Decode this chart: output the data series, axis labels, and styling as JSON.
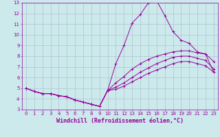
{
  "background_color": "#cce9ec",
  "line_color": "#990099",
  "grid_color": "#aabbcc",
  "xlabel": "Windchill (Refroidissement éolien,°C)",
  "xlabel_color": "#990099",
  "xlim": [
    -0.5,
    23.5
  ],
  "ylim": [
    3,
    13
  ],
  "xticks": [
    0,
    1,
    2,
    3,
    4,
    5,
    6,
    7,
    8,
    9,
    10,
    11,
    12,
    13,
    14,
    15,
    16,
    17,
    18,
    19,
    20,
    21,
    22,
    23
  ],
  "yticks": [
    3,
    4,
    5,
    6,
    7,
    8,
    9,
    10,
    11,
    12,
    13
  ],
  "lines": [
    {
      "x": [
        0,
        1,
        2,
        3,
        4,
        5,
        6,
        7,
        8,
        9,
        10,
        11,
        12,
        13,
        14,
        15,
        16,
        17,
        18,
        19,
        20,
        21,
        22,
        23
      ],
      "y": [
        5.0,
        4.7,
        4.5,
        4.5,
        4.3,
        4.2,
        3.9,
        3.7,
        3.5,
        3.3,
        4.8,
        7.3,
        9.0,
        11.1,
        11.9,
        13.0,
        13.2,
        11.8,
        10.3,
        9.5,
        9.2,
        8.4,
        8.2,
        6.5
      ]
    },
    {
      "x": [
        0,
        1,
        2,
        3,
        4,
        5,
        6,
        7,
        8,
        9,
        10,
        11,
        12,
        13,
        14,
        15,
        16,
        17,
        18,
        19,
        20,
        21,
        22,
        23
      ],
      "y": [
        5.0,
        4.7,
        4.5,
        4.5,
        4.3,
        4.2,
        3.9,
        3.7,
        3.5,
        3.3,
        4.8,
        5.5,
        6.1,
        6.8,
        7.3,
        7.7,
        8.0,
        8.2,
        8.4,
        8.5,
        8.5,
        8.3,
        8.2,
        7.5
      ]
    },
    {
      "x": [
        0,
        1,
        2,
        3,
        4,
        5,
        6,
        7,
        8,
        9,
        10,
        11,
        12,
        13,
        14,
        15,
        16,
        17,
        18,
        19,
        20,
        21,
        22,
        23
      ],
      "y": [
        5.0,
        4.7,
        4.5,
        4.5,
        4.3,
        4.2,
        3.9,
        3.7,
        3.5,
        3.3,
        4.8,
        5.1,
        5.5,
        6.0,
        6.5,
        6.9,
        7.3,
        7.6,
        7.9,
        8.0,
        8.0,
        7.8,
        7.6,
        6.8
      ]
    },
    {
      "x": [
        0,
        1,
        2,
        3,
        4,
        5,
        6,
        7,
        8,
        9,
        10,
        11,
        12,
        13,
        14,
        15,
        16,
        17,
        18,
        19,
        20,
        21,
        22,
        23
      ],
      "y": [
        5.0,
        4.7,
        4.5,
        4.5,
        4.3,
        4.2,
        3.9,
        3.7,
        3.5,
        3.3,
        4.8,
        4.9,
        5.2,
        5.6,
        6.0,
        6.4,
        6.7,
        7.0,
        7.3,
        7.5,
        7.5,
        7.3,
        7.1,
        6.5
      ]
    }
  ],
  "tick_fontsize": 5.0,
  "label_fontsize": 6.0,
  "marker": "+"
}
